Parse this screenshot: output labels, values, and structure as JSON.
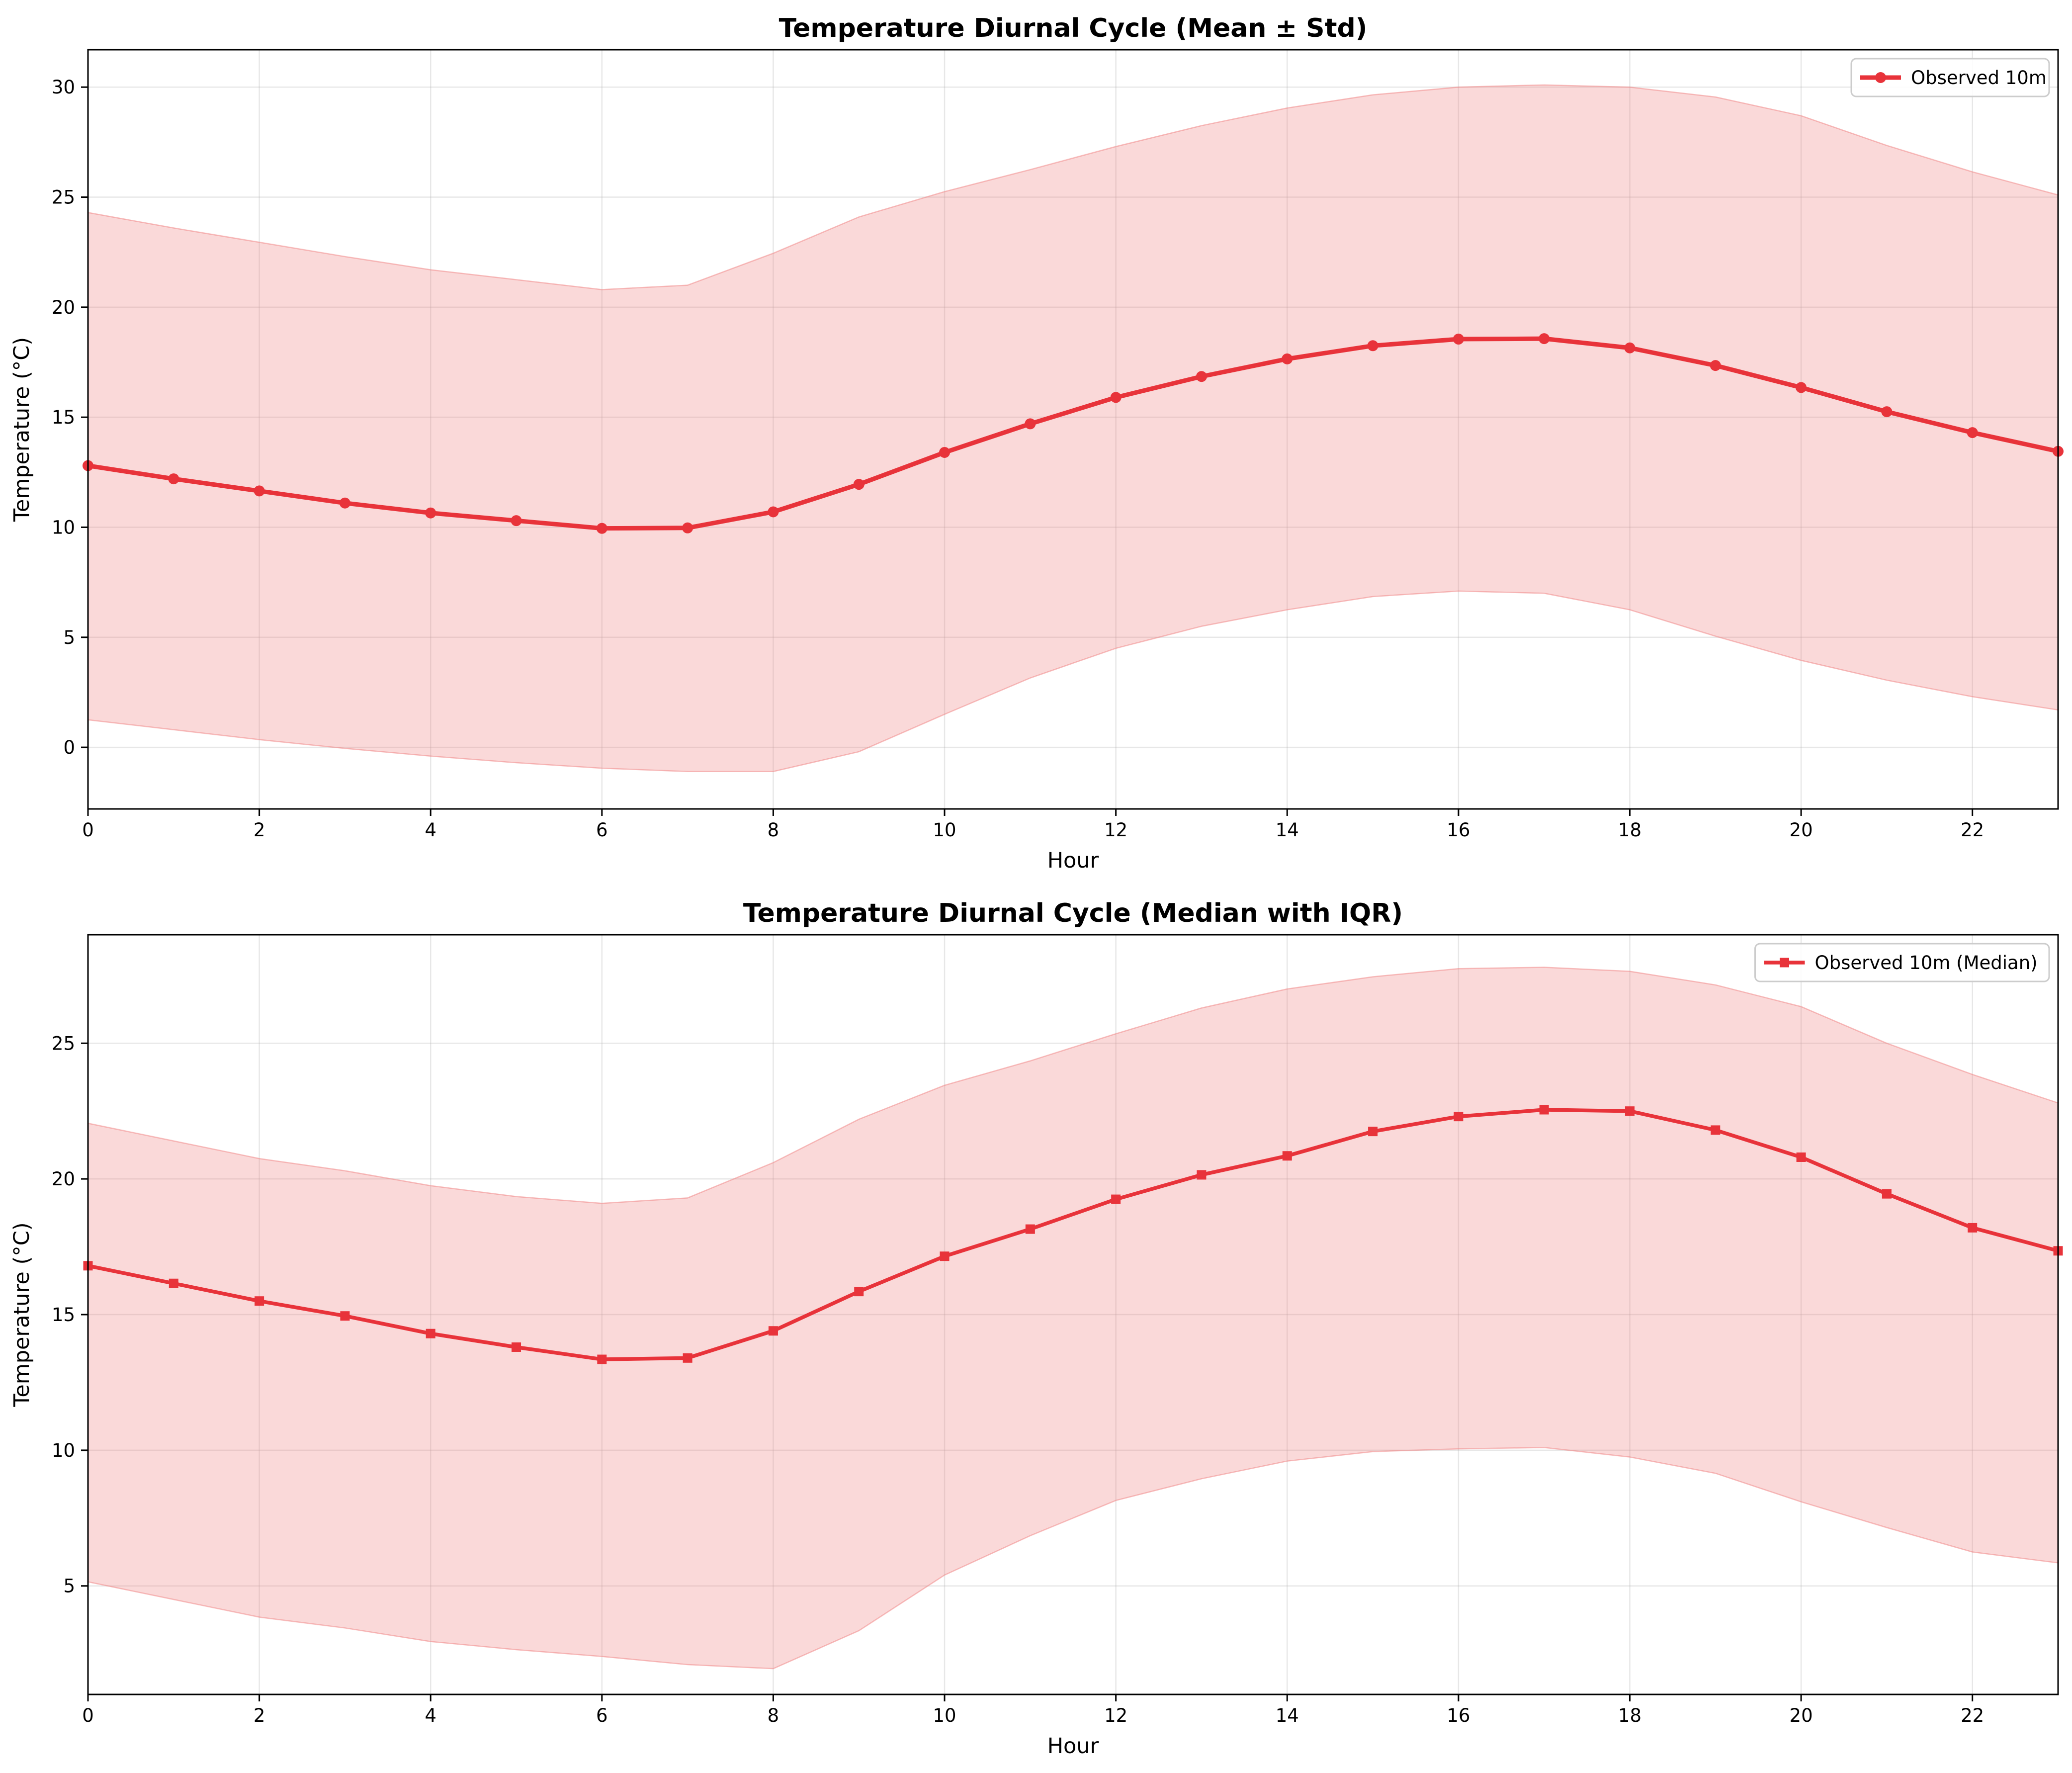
{
  "colors": {
    "line": "#e8333a",
    "band": "#f08080",
    "grid": "#b0b0b0",
    "axis": "#000000"
  },
  "chart_data": [
    {
      "type": "line",
      "title": "Temperature Diurnal Cycle (Mean ± Std)",
      "xlabel": "Hour",
      "ylabel": "Temperature (°C)",
      "xlim": [
        0,
        23
      ],
      "ylim": [
        -2.8,
        31.7
      ],
      "xticks": [
        0,
        2,
        4,
        6,
        8,
        10,
        12,
        14,
        16,
        18,
        20,
        22
      ],
      "yticks": [
        0,
        5,
        10,
        15,
        20,
        25,
        30
      ],
      "grid": true,
      "legend_position": "top-right",
      "marker": "circle",
      "x": [
        0,
        1,
        2,
        3,
        4,
        5,
        6,
        7,
        8,
        9,
        10,
        11,
        12,
        13,
        14,
        15,
        16,
        17,
        18,
        19,
        20,
        21,
        22,
        23
      ],
      "series": [
        {
          "name": "Observed 10m",
          "values": [
            12.8,
            12.2,
            11.65,
            11.1,
            10.65,
            10.3,
            9.95,
            9.97,
            10.7,
            11.95,
            13.4,
            14.7,
            15.9,
            16.85,
            17.65,
            18.25,
            18.55,
            18.57,
            18.15,
            17.35,
            16.35,
            15.25,
            14.3,
            13.45
          ]
        }
      ],
      "band": {
        "upper": [
          24.3,
          23.6,
          22.95,
          22.3,
          21.7,
          21.25,
          20.8,
          21.0,
          22.45,
          24.1,
          25.25,
          26.25,
          27.3,
          28.25,
          29.05,
          29.65,
          30.0,
          30.1,
          30.0,
          29.55,
          28.7,
          27.35,
          26.15,
          25.1
        ],
        "lower": [
          1.25,
          0.8,
          0.35,
          -0.05,
          -0.4,
          -0.7,
          -0.95,
          -1.1,
          -1.1,
          -0.2,
          1.5,
          3.15,
          4.5,
          5.5,
          6.25,
          6.85,
          7.1,
          7.0,
          6.25,
          5.05,
          3.95,
          3.05,
          2.3,
          1.7
        ]
      }
    },
    {
      "type": "line",
      "title": "Temperature Diurnal Cycle (Median with IQR)",
      "xlabel": "Hour",
      "ylabel": "Temperature (°C)",
      "xlim": [
        0,
        23
      ],
      "ylim": [
        1.0,
        29.0
      ],
      "xticks": [
        0,
        2,
        4,
        6,
        8,
        10,
        12,
        14,
        16,
        18,
        20,
        22
      ],
      "yticks": [
        5,
        10,
        15,
        20,
        25
      ],
      "grid": true,
      "legend_position": "top-right",
      "marker": "square",
      "x": [
        0,
        1,
        2,
        3,
        4,
        5,
        6,
        7,
        8,
        9,
        10,
        11,
        12,
        13,
        14,
        15,
        16,
        17,
        18,
        19,
        20,
        21,
        22,
        23
      ],
      "series": [
        {
          "name": "Observed 10m (Median)",
          "values": [
            16.8,
            16.15,
            15.5,
            14.95,
            14.3,
            13.8,
            13.35,
            13.4,
            14.4,
            15.85,
            17.15,
            18.15,
            19.25,
            20.15,
            20.85,
            21.75,
            22.3,
            22.55,
            22.5,
            21.8,
            20.8,
            19.45,
            18.2,
            17.35
          ]
        }
      ],
      "band": {
        "upper": [
          22.05,
          21.4,
          20.75,
          20.3,
          19.75,
          19.35,
          19.1,
          19.3,
          20.6,
          22.2,
          23.45,
          24.35,
          25.35,
          26.3,
          27.0,
          27.45,
          27.75,
          27.8,
          27.65,
          27.15,
          26.35,
          25.0,
          23.85,
          22.8
        ],
        "lower": [
          5.15,
          4.5,
          3.85,
          3.45,
          2.95,
          2.65,
          2.4,
          2.1,
          1.95,
          3.35,
          5.4,
          6.85,
          8.15,
          8.95,
          9.6,
          9.95,
          10.05,
          10.1,
          9.75,
          9.15,
          8.1,
          7.15,
          6.25,
          5.85
        ]
      }
    }
  ]
}
